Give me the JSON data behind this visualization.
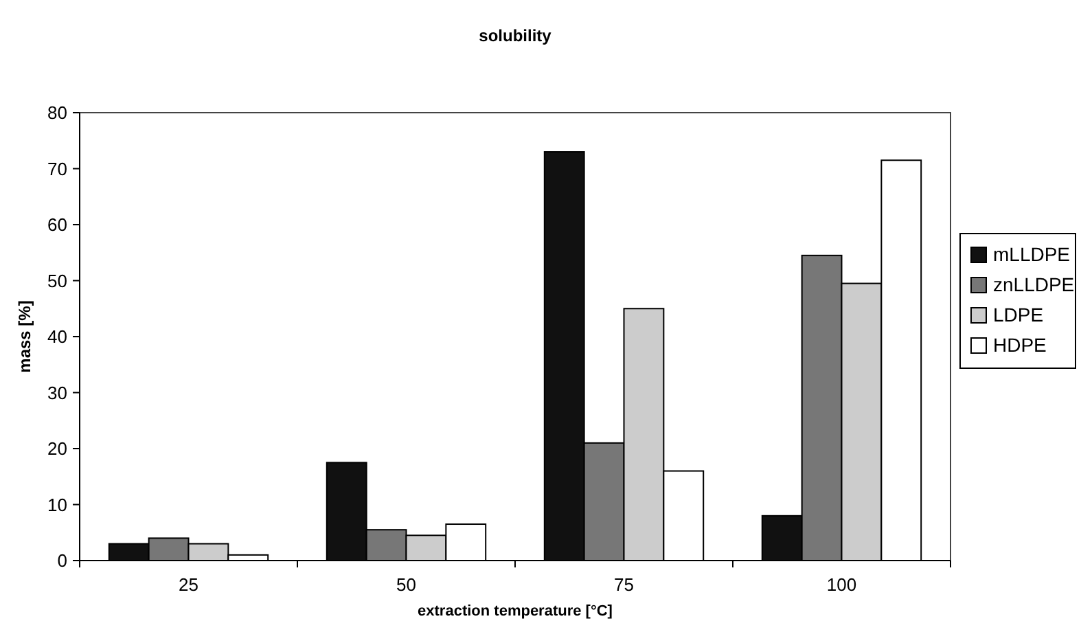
{
  "chart_data": {
    "type": "bar",
    "title": "solubility",
    "xlabel": "extraction temperature [°C]",
    "ylabel": "mass [%]",
    "categories": [
      "25",
      "50",
      "75",
      "100"
    ],
    "series": [
      {
        "name": "mLLDPE",
        "color": "#111111",
        "values": [
          3,
          17.5,
          73,
          8
        ]
      },
      {
        "name": "znLLDPE",
        "color": "#777777",
        "values": [
          4,
          5.5,
          21,
          54.5
        ]
      },
      {
        "name": "LDPE",
        "color": "#cccccc",
        "values": [
          3,
          4.5,
          45,
          49.5
        ]
      },
      {
        "name": "HDPE",
        "color": "#ffffff",
        "values": [
          1,
          6.5,
          16,
          71.5
        ]
      }
    ],
    "ylim": [
      0,
      80
    ],
    "yticks": [
      0,
      10,
      20,
      30,
      40,
      50,
      60,
      70,
      80
    ],
    "grid": false,
    "legend": "right"
  }
}
